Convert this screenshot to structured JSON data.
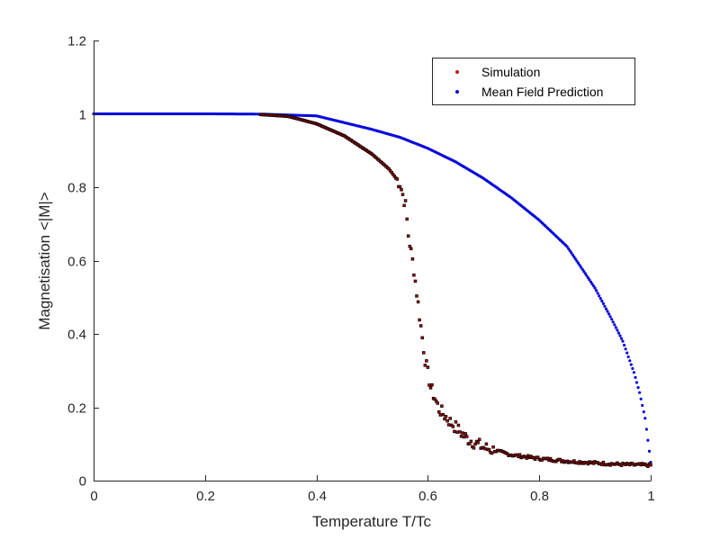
{
  "chart_data": {
    "type": "scatter",
    "title": "",
    "xlabel": "Temperature T/Tc",
    "ylabel": "Magnetisation <|M|>",
    "xlim": [
      0,
      1
    ],
    "ylim": [
      0,
      1.2
    ],
    "xticks": [
      0,
      0.2,
      0.4,
      0.6,
      0.8,
      1
    ],
    "xtick_labels": [
      "0",
      "0.2",
      "0.4",
      "0.6",
      "0.8",
      "1"
    ],
    "yticks": [
      0,
      0.2,
      0.4,
      0.6,
      0.8,
      1,
      1.2
    ],
    "ytick_labels": [
      "0",
      "0.2",
      "0.4",
      "0.6",
      "0.8",
      "1",
      "1.2"
    ],
    "grid": false,
    "box": false,
    "legend_position": "upper right",
    "series": [
      {
        "name": "Simulation",
        "color": "#d01010",
        "edge_color": "#1a0000",
        "marker": "dot",
        "x": [
          0.0,
          0.05,
          0.1,
          0.15,
          0.2,
          0.25,
          0.3,
          0.35,
          0.4,
          0.45,
          0.5,
          0.53,
          0.55,
          0.56,
          0.565,
          0.575,
          0.585,
          0.595,
          0.605,
          0.62,
          0.64,
          0.67,
          0.7,
          0.75,
          0.8,
          0.85,
          0.9,
          0.95,
          1.0
        ],
        "values": [
          1.0,
          1.0,
          1.0,
          1.0,
          1.0,
          0.999,
          0.998,
          0.993,
          0.973,
          0.94,
          0.89,
          0.85,
          0.81,
          0.75,
          0.67,
          0.575,
          0.45,
          0.33,
          0.255,
          0.195,
          0.16,
          0.115,
          0.09,
          0.07,
          0.06,
          0.053,
          0.048,
          0.044,
          0.042
        ]
      },
      {
        "name": "Mean Field Prediction",
        "color": "#0a0adc",
        "marker": "dot",
        "x": [
          0.0,
          0.1,
          0.2,
          0.3,
          0.4,
          0.5,
          0.55,
          0.6,
          0.65,
          0.7,
          0.75,
          0.8,
          0.85,
          0.9,
          0.93,
          0.95,
          0.97,
          0.98,
          0.99,
          1.0
        ],
        "values": [
          1.0,
          1.0,
          1.0,
          0.9993,
          0.9945,
          0.9575,
          0.936,
          0.906,
          0.869,
          0.824,
          0.771,
          0.71,
          0.638,
          0.525,
          0.44,
          0.38,
          0.295,
          0.24,
          0.17,
          0.05
        ]
      }
    ]
  },
  "legend": {
    "items": [
      {
        "label": "Simulation",
        "color": "#d01010"
      },
      {
        "label": "Mean Field Prediction",
        "color": "#0a0adc"
      }
    ]
  },
  "axes": {
    "xlabel": "Temperature T/Tc",
    "ylabel": "Magnetisation <|M|>"
  }
}
